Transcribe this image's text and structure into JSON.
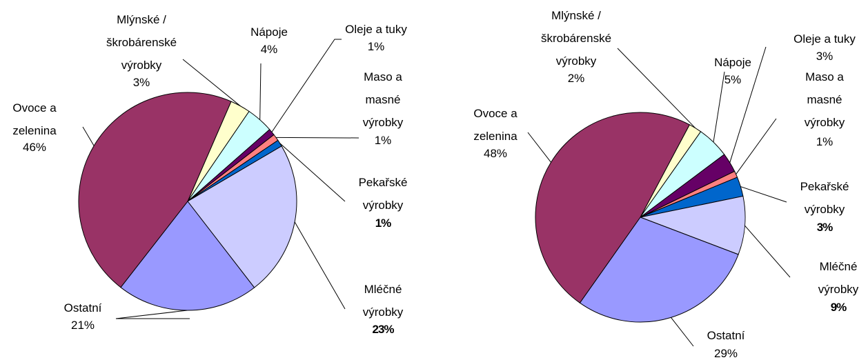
{
  "chart_data": [
    {
      "type": "pie",
      "categories": [
        "Mlýnské / škrobárenské výrobky",
        "Nápoje",
        "Oleje a tuky",
        "Maso a masné výrobky",
        "Pekařské výrobky",
        "Mléčné výrobky",
        "Ostatní",
        "Ovoce a zelenina"
      ],
      "values": [
        3,
        4,
        1,
        1,
        1,
        23,
        21,
        46
      ],
      "value_labels": [
        "3%",
        "4%",
        "1%",
        "1%",
        "1%",
        "23%",
        "21%",
        "46%"
      ],
      "colors": [
        "#ffffcc",
        "#ccffff",
        "#660066",
        "#ff8080",
        "#0066cc",
        "#ccccff",
        "#9999ff",
        "#993366"
      ]
    },
    {
      "type": "pie",
      "categories": [
        "Mlýnské / škrobárenské výrobky",
        "Nápoje",
        "Oleje a tuky",
        "Maso a masné výrobky",
        "Pekařské výrobky",
        "Mléčné výrobky",
        "Ostatní",
        "Ovoce a zelenina"
      ],
      "values": [
        2,
        5,
        3,
        1,
        3,
        9,
        29,
        48
      ],
      "value_labels": [
        "2%",
        "5%",
        "3%",
        "1%",
        "3%",
        "9%",
        "29%",
        "48%"
      ],
      "colors": [
        "#ffffcc",
        "#ccffff",
        "#660066",
        "#ff8080",
        "#0066cc",
        "#ccccff",
        "#9999ff",
        "#993366"
      ]
    }
  ]
}
